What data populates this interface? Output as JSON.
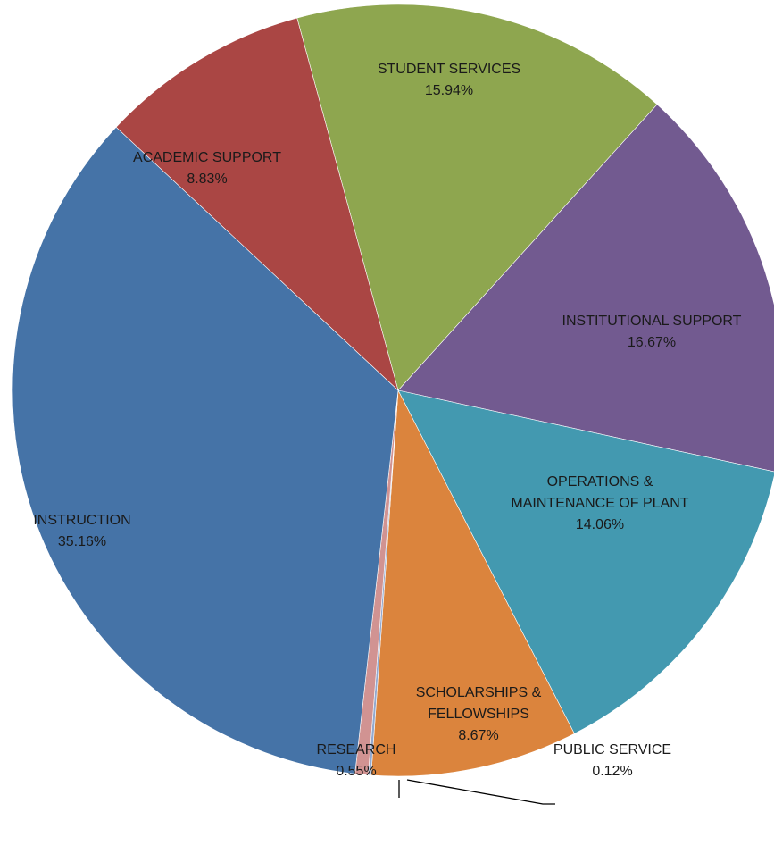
{
  "chart_data": {
    "type": "pie",
    "title": "",
    "slices": [
      {
        "label": [
          "STUDENT SERVICES"
        ],
        "value": 15.94,
        "display": "15.94%",
        "color": "#8ea64f"
      },
      {
        "label": [
          "INSTITUTIONAL SUPPORT"
        ],
        "value": 16.67,
        "display": "16.67%",
        "color": "#725a90"
      },
      {
        "label": [
          "OPERATIONS &",
          "MAINTENANCE OF PLANT"
        ],
        "value": 14.06,
        "display": "14.06%",
        "color": "#4399b0"
      },
      {
        "label": [
          "SCHOLARSHIPS &",
          "FELLOWSHIPS"
        ],
        "value": 8.67,
        "display": "8.67%",
        "color": "#db843d"
      },
      {
        "label": [
          "PUBLIC SERVICE"
        ],
        "value": 0.12,
        "display": "0.12%",
        "color": "#93a9cf"
      },
      {
        "label": [
          "RESEARCH"
        ],
        "value": 0.55,
        "display": "0.55%",
        "color": "#d19392"
      },
      {
        "label": [
          "INSTRUCTION"
        ],
        "value": 35.16,
        "display": "35.16%",
        "color": "#4573a7"
      },
      {
        "label": [
          "ACADEMIC SUPPORT"
        ],
        "value": 8.83,
        "display": "8.83%",
        "color": "#aa4644"
      }
    ]
  }
}
